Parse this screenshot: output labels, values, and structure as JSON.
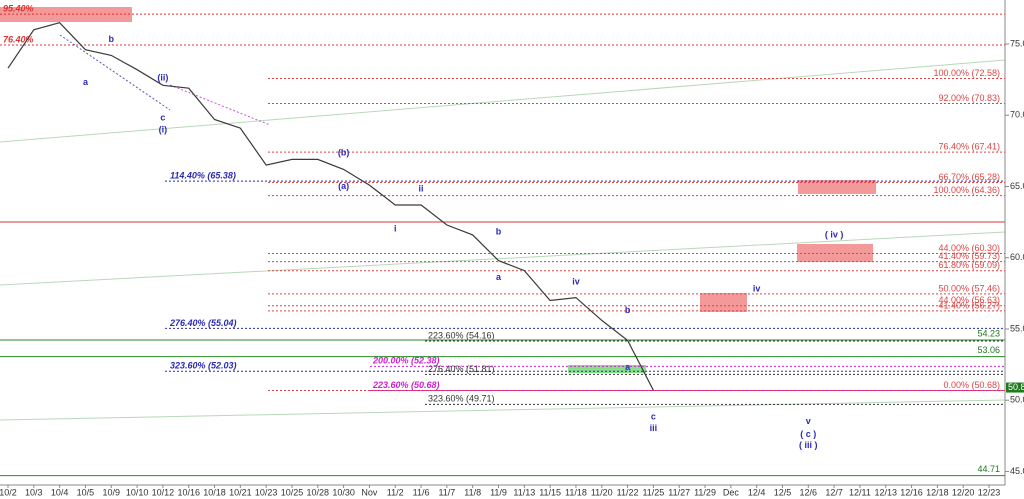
{
  "chart_data": {
    "type": "line",
    "categories": [
      "10/2",
      "10/3",
      "10/4",
      "10/5",
      "10/9",
      "10/10",
      "10/12",
      "10/16",
      "10/18",
      "10/21",
      "10/23",
      "10/25",
      "10/28",
      "10/30",
      "Nov",
      "11/2",
      "11/6",
      "11/7",
      "11/8",
      "11/9",
      "11/13",
      "11/15",
      "11/18",
      "11/20",
      "11/22",
      "11/25",
      "11/27",
      "11/29",
      "Dec",
      "12/4",
      "12/5",
      "12/6",
      "12/7",
      "12/11",
      "12/13",
      "12/16",
      "12/18",
      "12/20",
      "12/23"
    ],
    "series": [
      {
        "color": "#3a3a3a",
        "values": [
          73.3,
          76.0,
          76.5,
          74.6,
          74.2,
          73.2,
          72.1,
          71.9,
          69.7,
          69.1,
          66.5,
          66.9,
          66.9,
          66.2,
          65.1,
          63.7,
          63.7,
          62.3,
          61.6,
          59.8,
          59.1,
          57.0,
          57.2,
          55.6,
          54.2,
          50.7,
          null,
          null,
          null,
          null,
          null,
          null,
          null,
          null,
          null,
          null,
          null,
          null,
          null
        ]
      }
    ],
    "ylim": [
      44.05,
      78.09
    ],
    "yticks": [
      {
        "value": 45,
        "label": "45.00"
      },
      {
        "value": 50,
        "label": "50.00"
      },
      {
        "value": 55,
        "label": "55.00"
      },
      {
        "value": 60,
        "label": "60.00"
      },
      {
        "value": 65,
        "label": "65.00"
      },
      {
        "value": 70,
        "label": "70.00"
      },
      {
        "value": 75,
        "label": "75.00"
      }
    ],
    "last_price": {
      "value": 50.89,
      "label": "50.89"
    },
    "top_levels": [
      {
        "value": 77.1,
        "label": "95.40%"
      },
      {
        "value": 74.93,
        "label": "76.40%"
      }
    ],
    "retracements": [
      {
        "value": 72.58,
        "label": "100.00% (72.58)"
      },
      {
        "value": 70.83,
        "label": "92.00% (70.83)"
      },
      {
        "value": 67.41,
        "label": "76.40% (67.41)"
      },
      {
        "value": 65.28,
        "label": "66.70% (65.28)"
      },
      {
        "value": 64.36,
        "label": "100.00% (64.36)"
      },
      {
        "value": 60.3,
        "label": "44.00% (60.30)"
      },
      {
        "value": 59.73,
        "label": "41.40% (59.73)"
      },
      {
        "value": 59.09,
        "label": "61.80% (59.09)"
      },
      {
        "value": 57.46,
        "label": "50.00% (57.46)"
      },
      {
        "value": 56.63,
        "label": "44.00% (56.63)"
      },
      {
        "value": 56.27,
        "label": "41.40% (56.27)"
      },
      {
        "value": 50.68,
        "label": "0.00% (50.68)"
      }
    ],
    "blue_targets": [
      {
        "value": 65.38,
        "label": "114.40% (65.38)"
      },
      {
        "value": 55.04,
        "label": "276.40% (55.04)"
      },
      {
        "value": 52.03,
        "label": "323.60% (52.03)"
      }
    ],
    "magenta_targets": [
      {
        "value": 52.38,
        "label": "200.00% (52.38)"
      },
      {
        "value": 50.68,
        "label": "223.60% (50.68)"
      }
    ],
    "black_targets": [
      {
        "value": 54.16,
        "label": "223.60% (54.16)"
      },
      {
        "value": 51.81,
        "label": "276.40% (51.81)"
      },
      {
        "value": 49.71,
        "label": "323.60% (49.71)"
      }
    ],
    "green_levels": [
      54.23,
      53.06,
      44.71
    ],
    "annotations": [
      {
        "text": "a",
        "x": "10/5",
        "y": 72.3
      },
      {
        "text": "b",
        "x": "10/9",
        "y": 75.3
      },
      {
        "text": "(ii)",
        "x": "10/12",
        "y": 72.6
      },
      {
        "text": "c",
        "x": "10/12",
        "y": 69.8
      },
      {
        "text": "(i)",
        "x": "10/12",
        "y": 68.96
      },
      {
        "text": "(b)",
        "x": "10/30",
        "y": 67.35
      },
      {
        "text": "(a)",
        "x": "10/30",
        "y": 65.0
      },
      {
        "text": "ii",
        "x": "11/6",
        "y": 64.8
      },
      {
        "text": "i",
        "x": "11/2",
        "y": 62.0
      },
      {
        "text": "b",
        "x": "11/9",
        "y": 61.8
      },
      {
        "text": "a",
        "x": "11/9",
        "y": 58.6
      },
      {
        "text": "iv",
        "x": "11/18",
        "y": 58.3
      },
      {
        "text": "b",
        "x": "11/22",
        "y": 56.3
      },
      {
        "text": "a",
        "x": "11/22",
        "y": 52.3
      },
      {
        "text": "c",
        "x": "11/25",
        "y": 48.8
      },
      {
        "text": "iii",
        "x": "11/25",
        "y": 48.0
      },
      {
        "text": "iv",
        "x": "12/4",
        "y": 57.8
      },
      {
        "text": "( iv )",
        "x": "12/7",
        "y": 61.6
      },
      {
        "text": "v",
        "x": "12/6",
        "y": 48.5
      },
      {
        "text": "( c )",
        "x": "12/6",
        "y": 47.6
      },
      {
        "text": "( iii )",
        "x": "12/6",
        "y": 46.8
      }
    ]
  }
}
